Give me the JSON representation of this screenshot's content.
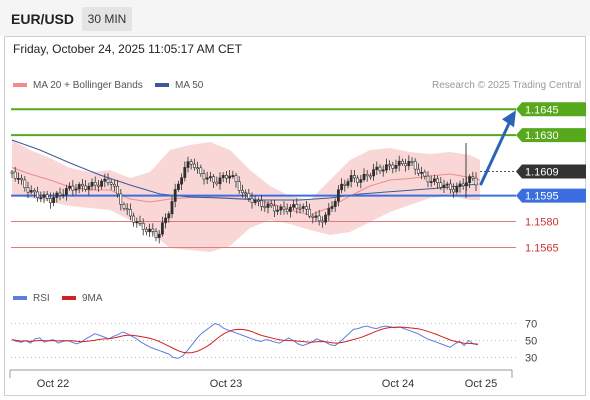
{
  "header": {
    "pair": "EUR/USD",
    "timeframe": "30 MIN"
  },
  "datetime": "Friday, October 24, 2025 11:05:17 AM CET",
  "legend": {
    "bb_label": "MA 20 + Bollinger Bands",
    "ma50_label": "MA 50",
    "rsi_label": "RSI",
    "ma9_label": "9MA"
  },
  "source": "Research © 2025 Trading Central",
  "colors": {
    "green": "#58a81c",
    "blue": "#3b6fe0",
    "red": "#e07b7b",
    "price_box": "#333333",
    "bb_fill": "#f9d7d7",
    "bb_line": "#f08b8b",
    "ma50": "#3c5a96",
    "candle": "#2e2e2e",
    "arrow": "#2b64b6",
    "rsi": "#5b7fe0",
    "rsi_ma": "#d32020"
  },
  "chart_data": {
    "type": "candlestick",
    "x_ticks": [
      "Oct 22",
      "Oct 23",
      "Oct 24",
      "Oct 25"
    ],
    "y_range": [
      1.1545,
      1.1655
    ],
    "levels": [
      {
        "value": 1.1645,
        "label": "1.1645",
        "kind": "resistance",
        "color": "green"
      },
      {
        "value": 1.163,
        "label": "1.1630",
        "kind": "resistance",
        "color": "green"
      },
      {
        "value": 1.1609,
        "label": "1.1609",
        "kind": "last",
        "color": "price_box"
      },
      {
        "value": 1.1595,
        "label": "1.1595",
        "kind": "pivot",
        "color": "blue"
      },
      {
        "value": 1.158,
        "label": "1.1580",
        "kind": "support",
        "color": "red"
      },
      {
        "value": 1.1565,
        "label": "1.1565",
        "kind": "support",
        "color": "red"
      }
    ],
    "rsi": {
      "ticks": [
        70,
        50,
        30
      ],
      "y_range": [
        20,
        80
      ],
      "values": [
        51,
        49,
        48,
        50,
        47,
        52,
        53,
        48,
        50,
        51,
        47,
        49,
        50,
        48,
        46,
        48,
        52,
        55,
        58,
        56,
        54,
        52,
        55,
        57,
        60,
        58,
        55,
        52,
        48,
        45,
        42,
        40,
        38,
        36,
        34,
        30,
        29,
        32,
        38,
        45,
        52,
        58,
        62,
        66,
        70,
        68,
        64,
        62,
        60,
        58,
        56,
        54,
        52,
        50,
        49,
        51,
        50,
        48,
        47,
        50,
        53,
        50,
        46,
        44,
        46,
        48,
        52,
        50,
        48,
        45,
        44,
        48,
        53,
        58,
        63,
        64,
        66,
        67,
        65,
        64,
        66,
        67,
        66,
        65,
        66,
        64,
        62,
        60,
        58,
        55,
        52,
        50,
        48,
        46,
        44,
        42,
        46,
        49,
        44,
        50,
        46,
        45
      ]
    }
  }
}
